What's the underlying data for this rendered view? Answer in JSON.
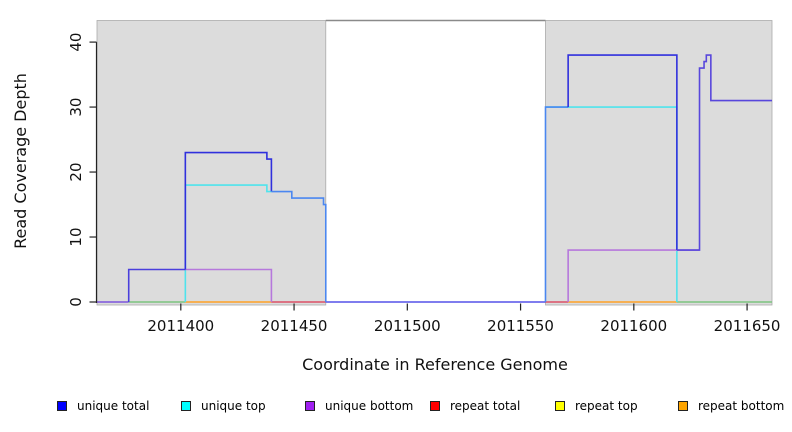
{
  "chart_data": {
    "type": "line",
    "subtype": "step-coverage",
    "title": "",
    "xlabel": "Coordinate in Reference Genome",
    "ylabel": "Read Coverage Depth",
    "xlim": [
      2011363,
      2011661
    ],
    "ylim": [
      0,
      43.4
    ],
    "x_ticks": [
      2011400,
      2011450,
      2011500,
      2011550,
      2011600,
      2011650
    ],
    "y_ticks": [
      0,
      10,
      20,
      30,
      40
    ],
    "grid": false,
    "legend_position": "bottom",
    "shaded_regions": [
      {
        "x0": 2011363,
        "x1": 2011464,
        "fill": "#DCDCDC",
        "border": "#ABABAB"
      },
      {
        "x0": 2011561,
        "x1": 2011661,
        "fill": "#DCDCDC",
        "border": "#ABABAB"
      }
    ],
    "gap_top_line": {
      "x0": 2011464,
      "x1": 2011561,
      "color": "#8A8A8A"
    },
    "series": [
      {
        "name": "unique total",
        "color": "#0000FF",
        "steps": [
          [
            2011363,
            0
          ],
          [
            2011377,
            5
          ],
          [
            2011402,
            23
          ],
          [
            2011438,
            22
          ],
          [
            2011440,
            17
          ],
          [
            2011449,
            16
          ],
          [
            2011463,
            15
          ],
          [
            2011464,
            0
          ],
          [
            2011561,
            30
          ],
          [
            2011571,
            38
          ],
          [
            2011619,
            8
          ],
          [
            2011629,
            36
          ],
          [
            2011631,
            37
          ],
          [
            2011632,
            38
          ],
          [
            2011634,
            31
          ],
          [
            2011661,
            31
          ]
        ]
      },
      {
        "name": "unique top",
        "color": "#00FFFF",
        "steps": [
          [
            2011363,
            0
          ],
          [
            2011402,
            18
          ],
          [
            2011438,
            17
          ],
          [
            2011464,
            0
          ],
          [
            2011561,
            30
          ],
          [
            2011619,
            0
          ],
          [
            2011661,
            0
          ]
        ]
      },
      {
        "name": "unique bottom",
        "color": "#A020F0",
        "steps": [
          [
            2011363,
            0
          ],
          [
            2011377,
            5
          ],
          [
            2011440,
            0
          ],
          [
            2011571,
            8
          ],
          [
            2011629,
            31
          ],
          [
            2011661,
            31
          ]
        ]
      },
      {
        "name": "repeat total",
        "color": "#FF0000",
        "steps": [
          [
            2011440,
            0
          ],
          [
            2011464,
            0
          ],
          [
            2011561,
            0
          ],
          [
            2011571,
            0
          ]
        ]
      },
      {
        "name": "repeat top",
        "color": "#FFFF00",
        "steps": [
          [
            2011402,
            0
          ],
          [
            2011440,
            0
          ],
          [
            2011571,
            0
          ],
          [
            2011619,
            0
          ]
        ]
      },
      {
        "name": "repeat bottom",
        "color": "#FFA500",
        "steps": [
          [
            2011402,
            0
          ],
          [
            2011440,
            0
          ],
          [
            2011571,
            0
          ],
          [
            2011619,
            0
          ]
        ]
      }
    ],
    "visible_polylines": [
      {
        "id": "baseline-unique-bottom-left",
        "color": "#7D55DC",
        "pts": [
          [
            2011363,
            0
          ],
          [
            2011377,
            0
          ]
        ]
      },
      {
        "id": "baseline-blend-left",
        "color": "#7CC47F",
        "pts": [
          [
            2011377,
            0
          ],
          [
            2011402,
            0
          ]
        ]
      },
      {
        "id": "baseline-repeat-bottom-left",
        "color": "#FFA226",
        "pts": [
          [
            2011402,
            0
          ],
          [
            2011440,
            0
          ]
        ]
      },
      {
        "id": "baseline-repeat-total-left",
        "color": "#DC5066",
        "pts": [
          [
            2011440,
            0
          ],
          [
            2011464,
            0
          ]
        ]
      },
      {
        "id": "baseline-gap",
        "color": "#5552E8",
        "pts": [
          [
            2011464,
            0
          ],
          [
            2011561,
            0
          ]
        ]
      },
      {
        "id": "baseline-repeat-total-right",
        "color": "#DC5066",
        "pts": [
          [
            2011561,
            0
          ],
          [
            2011571,
            0
          ]
        ]
      },
      {
        "id": "baseline-repeat-bottom-right",
        "color": "#FFA226",
        "pts": [
          [
            2011571,
            0
          ],
          [
            2011619,
            0
          ]
        ]
      },
      {
        "id": "baseline-blend-right",
        "color": "#7CC47F",
        "pts": [
          [
            2011619,
            0
          ],
          [
            2011661,
            0
          ]
        ]
      },
      {
        "id": "unique-top-left",
        "color": "#4FE3EC",
        "pts": [
          [
            2011402,
            0
          ],
          [
            2011402,
            18
          ],
          [
            2011438,
            18
          ],
          [
            2011438,
            17
          ],
          [
            2011440,
            17
          ]
        ]
      },
      {
        "id": "unique-bottom-left",
        "color": "#B678DC",
        "pts": [
          [
            2011402,
            5
          ],
          [
            2011440,
            5
          ],
          [
            2011440,
            0
          ]
        ]
      },
      {
        "id": "unique-total-left-low",
        "color": "#4A3FDC",
        "pts": [
          [
            2011377,
            0
          ],
          [
            2011377,
            5
          ],
          [
            2011402,
            5
          ]
        ]
      },
      {
        "id": "unique-total-left-peak",
        "color": "#3030DD",
        "pts": [
          [
            2011402,
            5
          ],
          [
            2011402,
            23
          ],
          [
            2011438,
            23
          ],
          [
            2011438,
            22
          ],
          [
            2011440,
            22
          ],
          [
            2011440,
            17
          ]
        ]
      },
      {
        "id": "unique-total-left-tail",
        "color": "#4B87F0",
        "pts": [
          [
            2011440,
            17
          ],
          [
            2011449,
            17
          ],
          [
            2011449,
            16
          ],
          [
            2011463,
            16
          ],
          [
            2011463,
            15
          ],
          [
            2011464,
            15
          ],
          [
            2011464,
            0
          ]
        ]
      },
      {
        "id": "unique-top-right",
        "color": "#4FE3EC",
        "pts": [
          [
            2011561,
            30
          ],
          [
            2011619,
            30
          ],
          [
            2011619,
            0
          ]
        ]
      },
      {
        "id": "unique-bottom-right",
        "color": "#B678DC",
        "pts": [
          [
            2011571,
            0
          ],
          [
            2011571,
            8
          ],
          [
            2011629,
            8
          ]
        ]
      },
      {
        "id": "unique-total-right-rise",
        "color": "#4B87F0",
        "pts": [
          [
            2011561,
            0
          ],
          [
            2011561,
            30
          ],
          [
            2011571,
            30
          ]
        ]
      },
      {
        "id": "unique-total-right-peak",
        "color": "#3030DD",
        "pts": [
          [
            2011571,
            30
          ],
          [
            2011571,
            38
          ],
          [
            2011619,
            38
          ],
          [
            2011619,
            8
          ]
        ]
      },
      {
        "id": "unique-total-right-spike",
        "color": "#5847DC",
        "pts": [
          [
            2011619,
            8
          ],
          [
            2011629,
            8
          ],
          [
            2011629,
            36
          ],
          [
            2011631,
            36
          ],
          [
            2011631,
            37
          ],
          [
            2011632,
            37
          ],
          [
            2011632,
            38
          ],
          [
            2011634,
            38
          ],
          [
            2011634,
            31
          ],
          [
            2011661,
            31
          ]
        ]
      }
    ]
  },
  "legend": {
    "items": [
      {
        "label": "unique total",
        "color": "#0000FF"
      },
      {
        "label": "unique top",
        "color": "#00FFFF"
      },
      {
        "label": "unique bottom",
        "color": "#A020F0"
      },
      {
        "label": "repeat total",
        "color": "#FF0000"
      },
      {
        "label": "repeat top",
        "color": "#FFFF00"
      },
      {
        "label": "repeat bottom",
        "color": "#FFA500"
      }
    ]
  }
}
